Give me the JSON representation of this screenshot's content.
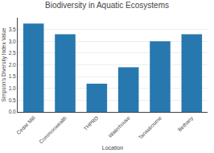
{
  "chart_data": {
    "type": "bar",
    "title": "Biodiversity in Aquatic Ecosystems",
    "xlabel": "Location",
    "ylabel": "Simpson's Diversity Index Value",
    "categories": [
      "Cedar Mill",
      "Commonwealth",
      "THPRD",
      "Waterhouse",
      "Tanasbourne",
      "Bethany"
    ],
    "values": [
      3.75,
      3.3,
      1.2,
      1.9,
      3.0,
      3.3
    ],
    "color": "#2878b0",
    "ylim": [
      0,
      4.0
    ],
    "yticks": [
      {
        "value": 0.0,
        "label": "0.0"
      },
      0.5,
      {
        "value": 1.0,
        "label": "1.0"
      },
      1.5,
      {
        "value": 2.0,
        "label": "2.0"
      },
      2.5,
      {
        "value": 3.0,
        "label": "3.0"
      },
      3.5
    ],
    "grid": true
  }
}
